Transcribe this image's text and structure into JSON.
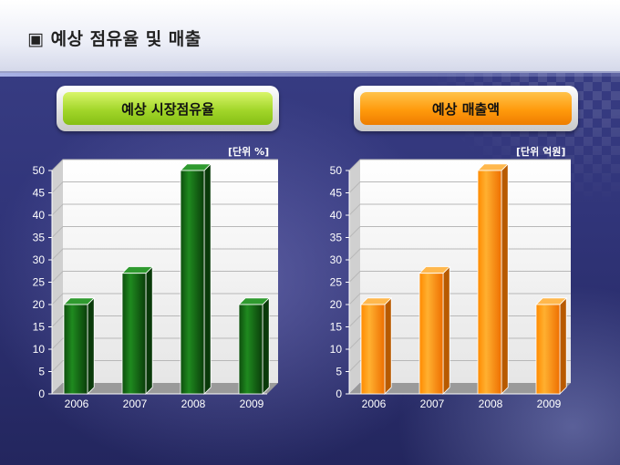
{
  "page": {
    "title": "▣ 예상 점유율 및 매출"
  },
  "chart_data": [
    {
      "type": "bar",
      "title": "예상 시장점유율",
      "unit_label": "[단위 %]",
      "categories": [
        "2006",
        "2007",
        "2008",
        "2009"
      ],
      "values": [
        20,
        27,
        50,
        20
      ],
      "ylim": [
        0,
        50
      ],
      "yticks": [
        "0",
        "5",
        "10",
        "15",
        "20",
        "25",
        "30",
        "35",
        "40",
        "45",
        "50"
      ],
      "grid": true,
      "color": "#1f7a1f"
    },
    {
      "type": "bar",
      "title": "예상 매출액",
      "unit_label": "[단위 억원]",
      "categories": [
        "2006",
        "2007",
        "2008",
        "2009"
      ],
      "values": [
        20,
        27,
        50,
        20
      ],
      "ylim": [
        0,
        50
      ],
      "yticks": [
        "0",
        "5",
        "10",
        "15",
        "20",
        "25",
        "30",
        "35",
        "40",
        "45",
        "50"
      ],
      "grid": true,
      "color": "#ff8c00"
    }
  ]
}
